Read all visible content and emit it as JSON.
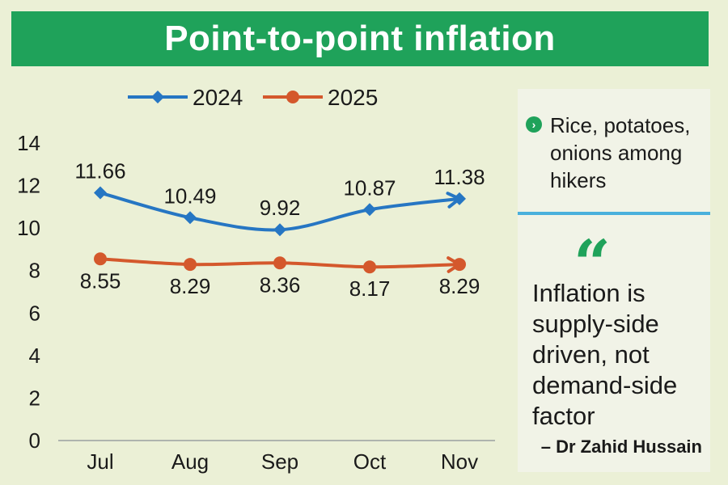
{
  "title": "Point-to-point inflation",
  "chart_data": {
    "type": "line",
    "categories": [
      "Jul",
      "Aug",
      "Sep",
      "Oct",
      "Nov"
    ],
    "series": [
      {
        "name": "2024",
        "color": "#2676c3",
        "marker": "diamond",
        "values": [
          11.66,
          10.49,
          9.92,
          10.87,
          11.38
        ],
        "labels": [
          "11.66",
          "10.49",
          "9.92",
          "10.87",
          "11.38"
        ]
      },
      {
        "name": "2025",
        "color": "#d4582c",
        "marker": "circle",
        "values": [
          8.55,
          8.29,
          8.36,
          8.17,
          8.29
        ],
        "labels": [
          "8.55",
          "8.29",
          "8.36",
          "8.17",
          "8.29"
        ]
      }
    ],
    "yticks": [
      "0",
      "2",
      "4",
      "6",
      "8",
      "10",
      "12",
      "14"
    ],
    "ylim": [
      0,
      14
    ],
    "legend": "top",
    "grid": false
  },
  "sidebar": {
    "note_icon": "chevron-right-icon",
    "note": "Rice, potatoes, onions among hikers",
    "quote_mark": "“",
    "quote": "Inflation is supply-side driven, not demand-side factor",
    "author": "– Dr Zahid Hussain"
  }
}
